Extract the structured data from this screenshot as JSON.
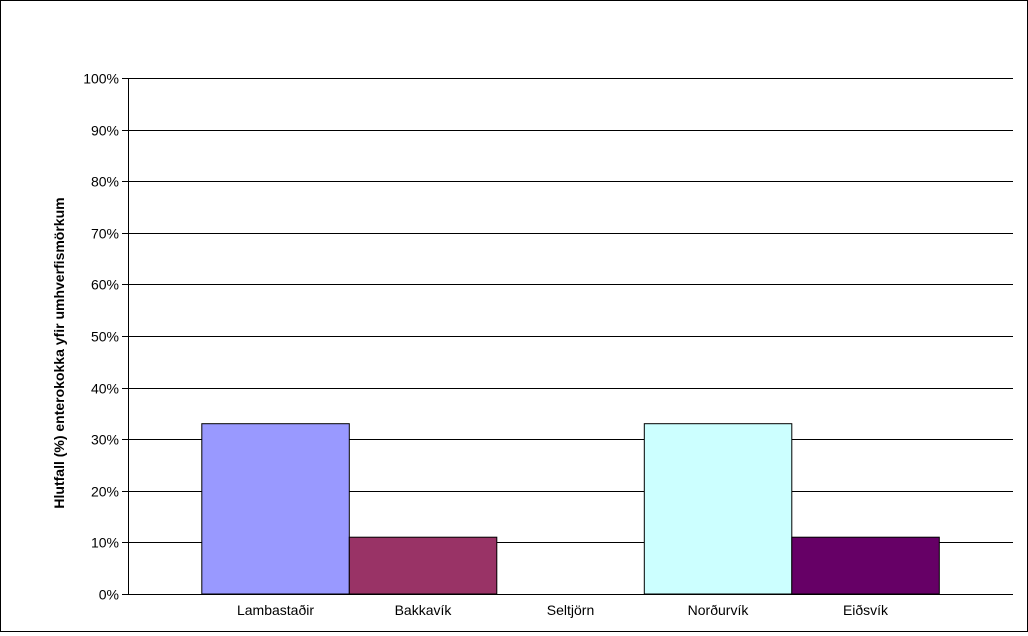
{
  "chart_data": {
    "type": "bar",
    "title": "",
    "xlabel": "",
    "ylabel": "Hlutfall (%) enterokokka yfir umhverfismörkum",
    "categories": [
      "Lambastaðir",
      "Bakkavík",
      "Seltjörn",
      "Norðurvík",
      "Eiðsvík"
    ],
    "values": [
      33,
      11,
      0,
      33,
      11
    ],
    "colors": [
      "#9999ff",
      "#993366",
      "#ffffcc",
      "#ccffff",
      "#660066"
    ],
    "ylim": [
      0,
      100
    ],
    "yticks": [
      0,
      10,
      20,
      30,
      40,
      50,
      60,
      70,
      80,
      90,
      100
    ],
    "ytick_labels": [
      "0%",
      "10%",
      "20%",
      "30%",
      "40%",
      "50%",
      "60%",
      "70%",
      "80%",
      "90%",
      "100%"
    ],
    "grid": true,
    "legend": "none"
  }
}
